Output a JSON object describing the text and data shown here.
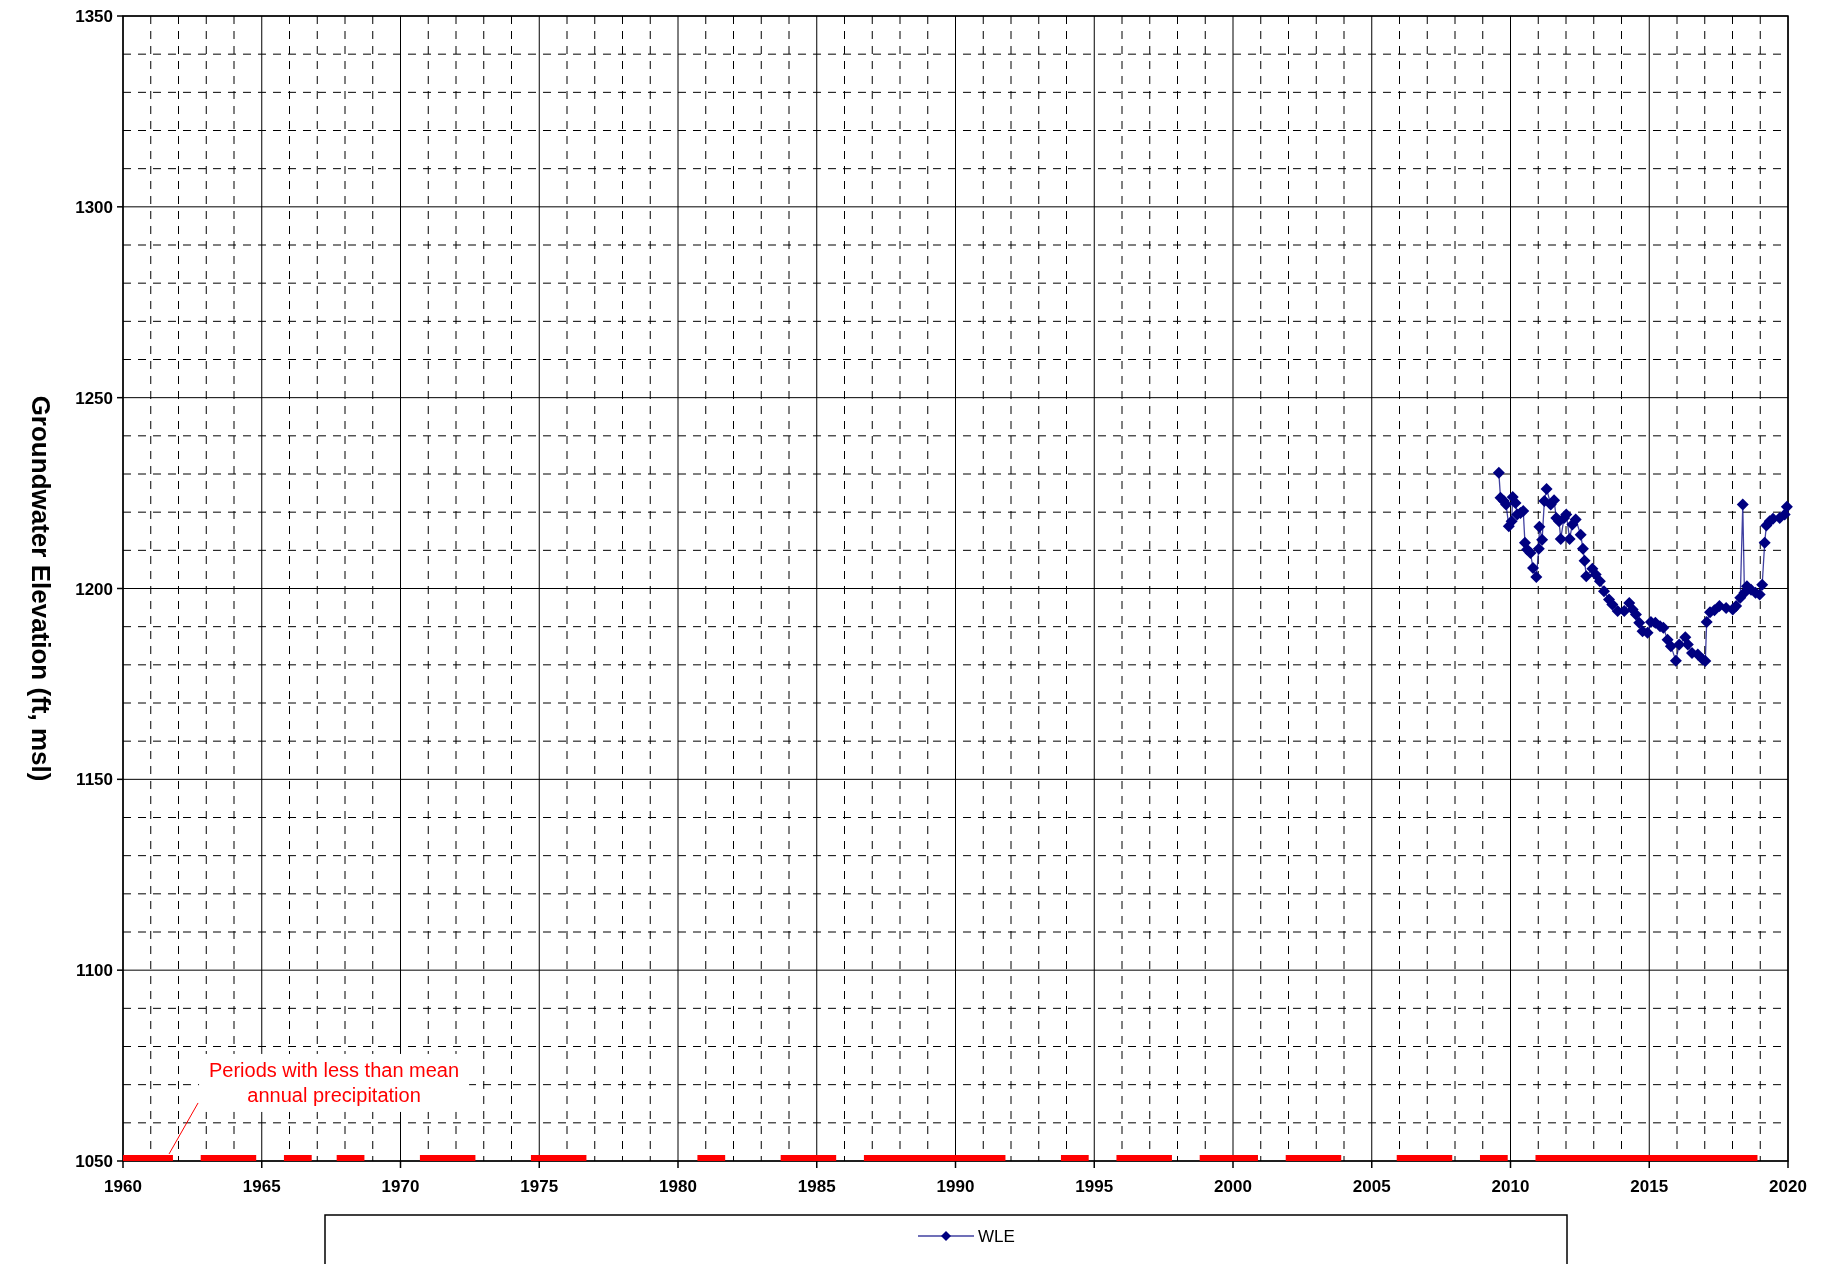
{
  "chart_data": {
    "type": "line",
    "ylabel": "Groundwater Elevation (ft, msl)",
    "xlim": [
      1960,
      2020
    ],
    "xticks": [
      1960,
      1965,
      1970,
      1975,
      1980,
      1985,
      1990,
      1995,
      2000,
      2005,
      2010,
      2015,
      2020
    ],
    "ylim": [
      1050,
      1350
    ],
    "yticks": [
      1050,
      1100,
      1150,
      1200,
      1250,
      1300,
      1350
    ],
    "grid": true,
    "legend": "bottom",
    "marker": "diamond",
    "line_style": "solid",
    "series": [
      {
        "name": "WLE",
        "color": "#000080",
        "x": [
          2009.58,
          2009.64,
          2009.76,
          2009.84,
          2009.94,
          2010.04,
          2010.08,
          2010.18,
          2010.24,
          2010.36,
          2010.46,
          2010.52,
          2010.6,
          2010.72,
          2010.81,
          2010.93,
          2011.02,
          2011.04,
          2011.14,
          2011.22,
          2011.3,
          2011.45,
          2011.57,
          2011.65,
          2011.75,
          2011.81,
          2011.93,
          2012.01,
          2012.13,
          2012.23,
          2012.35,
          2012.53,
          2012.61,
          2012.67,
          2012.73,
          2012.95,
          2013.07,
          2013.22,
          2013.37,
          2013.55,
          2013.67,
          2013.86,
          2014.1,
          2014.28,
          2014.4,
          2014.52,
          2014.64,
          2014.76,
          2014.94,
          2015.06,
          2015.22,
          2015.39,
          2015.51,
          2015.66,
          2015.78,
          2015.96,
          2016.08,
          2016.3,
          2016.39,
          2016.54,
          2016.75,
          2016.93,
          2017.02,
          2017.07,
          2017.19,
          2017.35,
          2017.53,
          2017.77,
          2018.01,
          2018.13,
          2018.28,
          2018.37,
          2018.43,
          2018.52,
          2018.67,
          2018.83,
          2018.98,
          2019.07,
          2019.16,
          2019.22,
          2019.34,
          2019.46,
          2019.7,
          2019.88,
          2019.96
        ],
        "values": [
          1230.3,
          1223.8,
          1222.9,
          1222,
          1216.3,
          1217.6,
          1224,
          1222.4,
          1219.4,
          1219.8,
          1220.3,
          1212,
          1210.2,
          1209.3,
          1205.4,
          1203,
          1210.4,
          1216.2,
          1212.8,
          1222.9,
          1226.1,
          1222,
          1223.1,
          1218.5,
          1217.6,
          1213,
          1218.5,
          1219.4,
          1213,
          1216.8,
          1218.1,
          1214.1,
          1210.4,
          1207.3,
          1203.2,
          1205.2,
          1203.7,
          1201.9,
          1199.3,
          1197.1,
          1195.8,
          1194.1,
          1194.1,
          1196.2,
          1194.5,
          1193.2,
          1191,
          1188.8,
          1188.4,
          1191.2,
          1191,
          1190.1,
          1189.7,
          1186.6,
          1184.9,
          1181.1,
          1185.3,
          1187.2,
          1185.3,
          1183.1,
          1182.7,
          1181.4,
          1181,
          1191.2,
          1193.8,
          1194.3,
          1195.4,
          1194.9,
          1194.5,
          1195.4,
          1197.6,
          1222,
          1198.9,
          1200.6,
          1199.7,
          1198.9,
          1198.4,
          1201,
          1212,
          1216.5,
          1217.6,
          1218.3,
          1218.5,
          1219.4,
          1221.4
        ]
      },
      {
        "color": "#ff0000",
        "marker": "none",
        "x": [
          1960,
          1961.8,
          1962.3,
          1962.8,
          1964.8,
          1965.3,
          1965.8,
          1966.8,
          1967.2,
          1967.7,
          1968.7,
          1969.7,
          1970.7,
          1972.7,
          1973.7,
          1974.7,
          1976.7,
          1978.7,
          1980.7,
          1981.7,
          1982.7,
          1983.7,
          1985.7,
          1986.2,
          1986.7,
          1991.8,
          1992.8,
          1993.8,
          1994.8,
          1995.3,
          1995.8,
          1997.8,
          1998.3,
          1998.8,
          2000.9,
          2001.4,
          2001.9,
          2003.9,
          2004.9,
          2005.9,
          2007.9,
          2008.4,
          2008.9,
          2009.9,
          2010.4,
          2010.9,
          2018.9
        ],
        "values": [
          1050.8,
          1050.8,
          null,
          1050.8,
          1050.8,
          null,
          1050.8,
          1050.8,
          null,
          1050.8,
          1050.8,
          null,
          1050.8,
          1050.8,
          null,
          1050.8,
          1050.8,
          null,
          1050.8,
          1050.8,
          null,
          1050.8,
          1050.8,
          null,
          1050.8,
          1050.8,
          null,
          1050.8,
          1050.8,
          null,
          1050.8,
          1050.8,
          null,
          1050.8,
          1050.8,
          null,
          1050.8,
          1050.8,
          null,
          1050.8,
          1050.8,
          null,
          1050.8,
          1050.8,
          null,
          1050.8,
          1050.8
        ]
      }
    ],
    "annotations": [
      {
        "text": "Periods with less than mean annual precipitation",
        "x": 1961.66,
        "y": 1050.8
      }
    ]
  }
}
